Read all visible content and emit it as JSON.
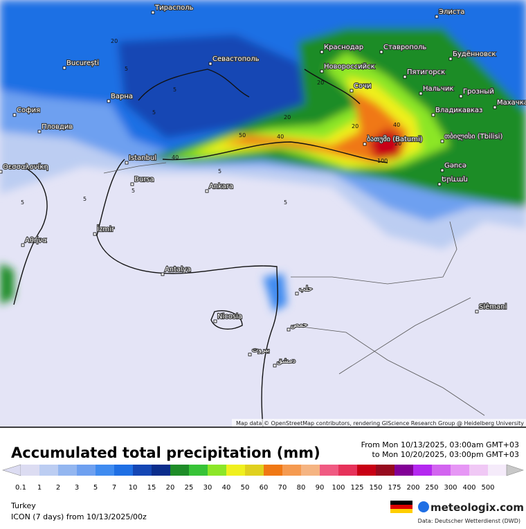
{
  "map": {
    "cities": [
      "Тирасполь",
      "București",
      "Севастополь",
      "Краснодар",
      "Ставрополь",
      "Новороссийск",
      "Пятигорск",
      "Будённовск",
      "Сочи",
      "Нальчик",
      "Грозный",
      "Махачкала",
      "София",
      "Варна",
      "Пловдив",
      "Владикавказ",
      "ბათუმი (Batumi)",
      "თბილისი (Tbilisi)",
      "Istanbul",
      "Bursa",
      "Ankara",
      "Gəncə",
      "Երևան",
      "Θεσσαλονίκη",
      "Αθήνα",
      "İzmir",
      "Antalya",
      "Nicosia",
      "حلب",
      "حمص",
      "بيروت",
      "دمشق",
      "Slêmani",
      "Элиста"
    ],
    "contour_labels": [
      "20",
      "5",
      "5",
      "5",
      "20",
      "20",
      "40",
      "20",
      "40",
      "40",
      "20",
      "50",
      "5",
      "5",
      "5",
      "100",
      "5",
      "5"
    ],
    "attribution": "Map data © OpenStreetMap contributors, rendering GIScience Research Group @ Heidelberg University"
  },
  "legend": {
    "title": "Accumulated total precipitation (mm)",
    "from": "From Mon 10/13/2025, 03:00am GMT+03",
    "to": "to Mon 10/20/2025, 03:00pm GMT+03",
    "labels": [
      "0.1",
      "1",
      "2",
      "3",
      "5",
      "7",
      "10",
      "15",
      "20",
      "25",
      "30",
      "40",
      "50",
      "60",
      "70",
      "80",
      "90",
      "100",
      "125",
      "150",
      "175",
      "200",
      "250",
      "300",
      "400",
      "500"
    ],
    "colors": [
      "#dcdcf2",
      "#bccdf2",
      "#93b6f0",
      "#6ea0f0",
      "#3f8bf0",
      "#1f6fe4",
      "#1446b4",
      "#0a2d8c",
      "#1e8c28",
      "#37c337",
      "#8ce628",
      "#f0f01e",
      "#e0d01e",
      "#f07814",
      "#f59a50",
      "#f5b482",
      "#f05a82",
      "#e6325a",
      "#c80014",
      "#960a1e",
      "#820096",
      "#b428f0",
      "#d264f0",
      "#e696f5",
      "#f0c8f5",
      "#f5ebfa"
    ],
    "end_color": "#c8c8c8",
    "region": "Turkey",
    "model": "ICON (7 days)  from  10/13/2025/00z",
    "logo": "meteologix.com",
    "source": "Data: Deutscher Wetterdienst (DWD)"
  }
}
